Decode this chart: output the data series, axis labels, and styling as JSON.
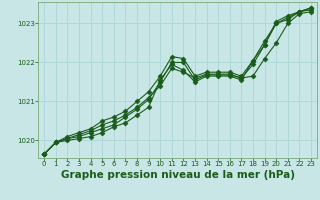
{
  "background_color": "#c8e6e6",
  "grid_color": "#b0d8d8",
  "line_color": "#1a5c1a",
  "title": "Graphe pression niveau de la mer (hPa)",
  "title_fontsize": 7.5,
  "title_color": "#1a5c1a",
  "ylim": [
    1019.55,
    1023.55
  ],
  "xlim": [
    -0.5,
    23.5
  ],
  "yticks": [
    1020,
    1021,
    1022,
    1023
  ],
  "xticks": [
    0,
    1,
    2,
    3,
    4,
    5,
    6,
    7,
    8,
    9,
    10,
    11,
    12,
    13,
    14,
    15,
    16,
    17,
    18,
    19,
    20,
    21,
    22,
    23
  ],
  "series": [
    [
      1019.65,
      1019.95,
      1020.0,
      1020.05,
      1020.1,
      1020.2,
      1020.35,
      1020.45,
      1020.65,
      1020.85,
      1021.55,
      1021.95,
      1021.8,
      1021.5,
      1021.65,
      1021.65,
      1021.65,
      1021.55,
      1022.05,
      1022.45,
      1023.05,
      1023.2,
      1023.3,
      1023.4
    ],
    [
      1019.65,
      1019.95,
      1020.05,
      1020.15,
      1020.25,
      1020.4,
      1020.5,
      1020.65,
      1020.85,
      1021.1,
      1021.4,
      1021.85,
      1021.75,
      1021.6,
      1021.7,
      1021.7,
      1021.7,
      1021.6,
      1021.65,
      1022.1,
      1022.5,
      1023.0,
      1023.25,
      1023.3
    ],
    [
      1019.65,
      1019.95,
      1020.1,
      1020.2,
      1020.3,
      1020.5,
      1020.6,
      1020.75,
      1021.0,
      1021.25,
      1021.65,
      1022.15,
      1022.1,
      1021.65,
      1021.75,
      1021.75,
      1021.75,
      1021.65,
      1022.05,
      1022.55,
      1023.0,
      1023.15,
      1023.3,
      1023.4
    ],
    [
      1019.65,
      1019.95,
      1020.05,
      1020.1,
      1020.2,
      1020.3,
      1020.4,
      1020.6,
      1020.8,
      1021.05,
      1021.5,
      1022.0,
      1022.0,
      1021.55,
      1021.68,
      1021.68,
      1021.68,
      1021.6,
      1021.95,
      1022.45,
      1023.0,
      1023.1,
      1023.3,
      1023.35
    ]
  ]
}
